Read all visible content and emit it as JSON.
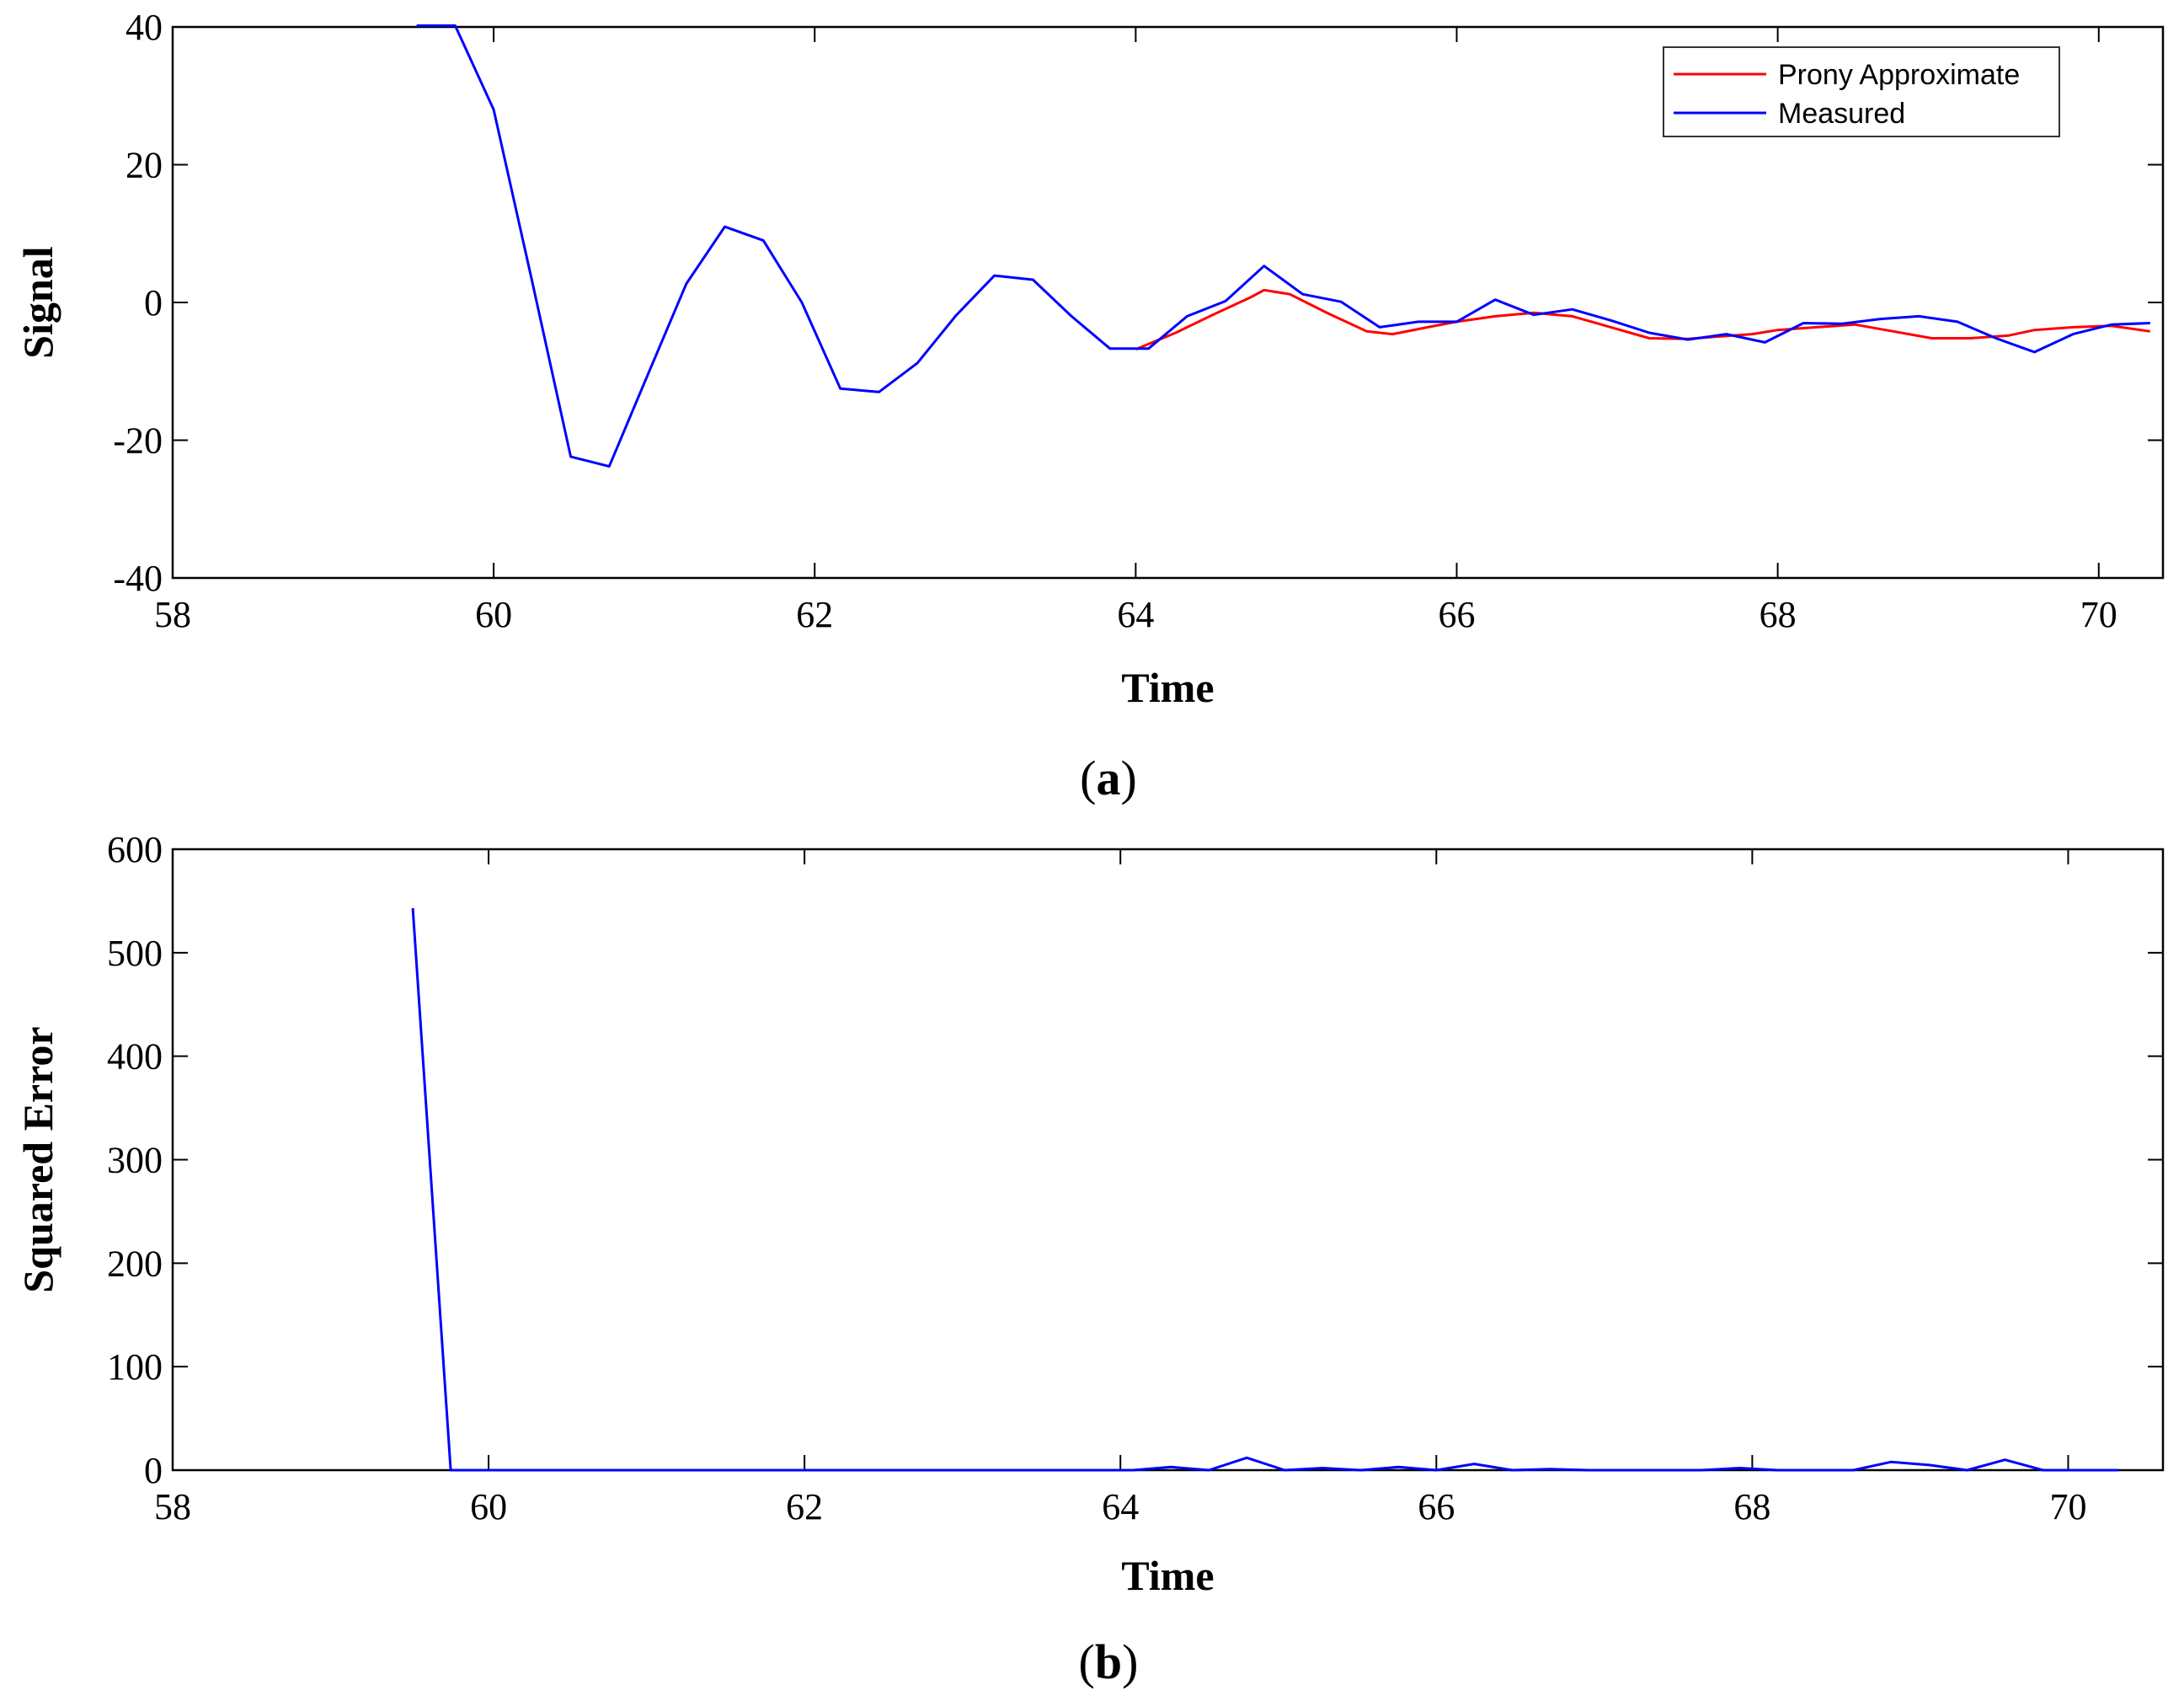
{
  "chart_data": [
    {
      "panel": "(a)",
      "type": "line",
      "xlabel": "Time",
      "ylabel": "Signal",
      "xlim": [
        58,
        70.4
      ],
      "ylim": [
        -40,
        40
      ],
      "xticks": [
        "58",
        "60",
        "62",
        "64",
        "66",
        "68",
        "70"
      ],
      "yticks": [
        "-40",
        "-20",
        "0",
        "20",
        "40"
      ],
      "legend_position": "top-right",
      "legend": [
        "Prony Approximate",
        "Measured"
      ],
      "series": [
        {
          "name": "Prony Approximate",
          "color": "#ff0000",
          "x": [
            64.0,
            64.24,
            64.48,
            64.72,
            64.8,
            64.96,
            65.2,
            65.44,
            65.6,
            65.84,
            66.0,
            66.24,
            66.48,
            66.72,
            66.96,
            67.2,
            67.44,
            67.6,
            67.84,
            68.0,
            68.24,
            68.48,
            68.72,
            68.96,
            69.2,
            69.44,
            69.6,
            69.84,
            70.08,
            70.32
          ],
          "y": [
            -6.8,
            -4.5,
            -1.8,
            0.8,
            1.8,
            1.2,
            -1.6,
            -4.2,
            -4.6,
            -3.5,
            -2.8,
            -2.0,
            -1.5,
            -2.0,
            -3.6,
            -5.2,
            -5.3,
            -5.0,
            -4.6,
            -4.0,
            -3.6,
            -3.2,
            -4.2,
            -5.2,
            -5.2,
            -4.8,
            -4.0,
            -3.6,
            -3.4,
            -4.2
          ]
        },
        {
          "name": "Measured",
          "color": "#0000ff",
          "x": [
            59.52,
            59.76,
            60.0,
            60.24,
            60.48,
            60.72,
            60.96,
            61.2,
            61.44,
            61.68,
            61.92,
            62.16,
            62.4,
            62.64,
            62.88,
            63.12,
            63.36,
            63.6,
            63.84,
            64.08,
            64.32,
            64.56,
            64.8,
            65.04,
            65.28,
            65.52,
            65.76,
            66.0,
            66.24,
            66.48,
            66.72,
            66.96,
            67.2,
            67.44,
            67.68,
            67.92,
            68.16,
            68.4,
            68.64,
            68.88,
            69.12,
            69.36,
            69.6,
            69.84,
            70.08,
            70.32
          ],
          "y": [
            40.2,
            40.2,
            28.0,
            3.0,
            -22.4,
            -23.8,
            -10.5,
            2.7,
            11.0,
            9.0,
            0.0,
            -12.5,
            -13.0,
            -8.8,
            -1.9,
            3.9,
            3.3,
            -2.0,
            -6.7,
            -6.7,
            -2.0,
            0.2,
            5.3,
            1.2,
            0.1,
            -3.6,
            -2.8,
            -2.8,
            0.4,
            -1.8,
            -1.0,
            -2.6,
            -4.4,
            -5.4,
            -4.6,
            -5.8,
            -3.0,
            -3.1,
            -2.4,
            -2.0,
            -2.8,
            -5.2,
            -7.2,
            -4.6,
            -3.2,
            -3.0
          ]
        }
      ]
    },
    {
      "panel": "(b)",
      "type": "line",
      "xlabel": "Time",
      "ylabel": "Squared Error",
      "xlim": [
        58,
        70.6
      ],
      "ylim": [
        0,
        600
      ],
      "xticks": [
        "58",
        "60",
        "62",
        "64",
        "66",
        "68",
        "70"
      ],
      "yticks": [
        "0",
        "100",
        "200",
        "300",
        "400",
        "500",
        "600"
      ],
      "series": [
        {
          "color": "#0000ff",
          "x": [
            59.52,
            59.76,
            60.0,
            60.24,
            60.48,
            60.72,
            60.96,
            61.2,
            61.44,
            61.68,
            61.92,
            62.16,
            62.4,
            62.64,
            62.88,
            63.12,
            63.36,
            63.6,
            63.84,
            64.08,
            64.32,
            64.56,
            64.8,
            65.04,
            65.28,
            65.52,
            65.76,
            66.0,
            66.24,
            66.48,
            66.72,
            66.96,
            67.2,
            67.44,
            67.68,
            67.92,
            68.16,
            68.4,
            68.64,
            68.88,
            69.12,
            69.36,
            69.6,
            69.84,
            70.08,
            70.32
          ],
          "y": [
            543,
            0,
            0,
            0,
            0,
            0,
            0,
            0,
            0,
            0,
            0,
            0,
            0,
            0,
            0,
            0,
            0,
            0,
            0,
            0,
            3,
            0,
            12,
            0,
            2,
            0,
            3,
            0,
            6,
            0,
            1,
            0,
            0,
            0,
            0,
            2,
            0,
            0,
            0,
            8,
            5,
            0,
            10,
            0,
            0,
            0
          ]
        }
      ]
    }
  ]
}
